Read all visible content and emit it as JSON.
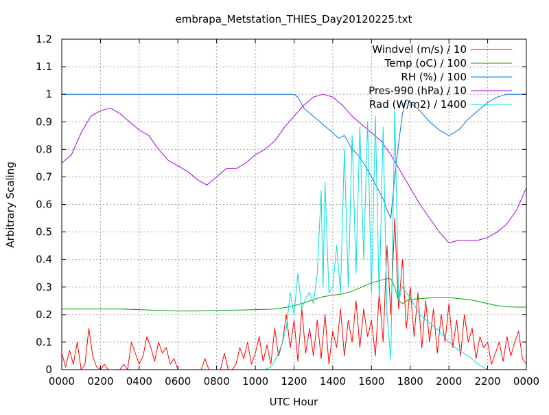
{
  "chart_data": {
    "type": "line",
    "title": "embrapa_Metstation_THIES_Day20120225.txt",
    "xlabel": "UTC Hour",
    "ylabel": "Arbitrary Scaling",
    "xlim": [
      0,
      24
    ],
    "ylim": [
      0,
      1.2
    ],
    "grid": true,
    "legend_position": "top-right",
    "x_tick_values": [
      0,
      2,
      4,
      6,
      8,
      10,
      12,
      14,
      16,
      18,
      20,
      22,
      24
    ],
    "x_tick_labels": [
      "0000",
      "0200",
      "0400",
      "0600",
      "0800",
      "1000",
      "1200",
      "1400",
      "1600",
      "1800",
      "2000",
      "2200",
      "0000"
    ],
    "y_tick_values": [
      0,
      0.1,
      0.2,
      0.3,
      0.4,
      0.5,
      0.6,
      0.7,
      0.8,
      0.9,
      1,
      1.1,
      1.2
    ],
    "y_tick_labels": [
      "0",
      "0.1",
      "0.2",
      "0.3",
      "0.4",
      "0.5",
      "0.6",
      "0.7",
      "0.8",
      "0.9",
      "1",
      "1.1",
      "1.2"
    ],
    "series": [
      {
        "name": "Windvel (m/s) / 10",
        "color": "#ff0000",
        "x": [
          0,
          0.2,
          0.4,
          0.6,
          0.8,
          1.0,
          1.2,
          1.4,
          1.6,
          1.8,
          2.0,
          2.2,
          2.4,
          2.6,
          2.8,
          3.0,
          3.2,
          3.4,
          3.6,
          3.8,
          4.0,
          4.2,
          4.4,
          4.6,
          4.8,
          5.0,
          5.2,
          5.4,
          5.6,
          5.8,
          6.0,
          6.2,
          6.4,
          6.6,
          6.8,
          7.0,
          7.2,
          7.4,
          7.6,
          7.8,
          8.0,
          8.2,
          8.4,
          8.6,
          8.8,
          9.0,
          9.2,
          9.4,
          9.6,
          9.8,
          10.0,
          10.2,
          10.4,
          10.6,
          10.8,
          11.0,
          11.2,
          11.4,
          11.6,
          11.8,
          12.0,
          12.2,
          12.4,
          12.6,
          12.8,
          13.0,
          13.2,
          13.4,
          13.6,
          13.8,
          14.0,
          14.2,
          14.4,
          14.6,
          14.8,
          15.0,
          15.2,
          15.4,
          15.6,
          15.8,
          16.0,
          16.2,
          16.4,
          16.6,
          16.8,
          17.0,
          17.2,
          17.4,
          17.6,
          17.8,
          18.0,
          18.2,
          18.4,
          18.6,
          18.8,
          19.0,
          19.2,
          19.4,
          19.6,
          19.8,
          20.0,
          20.2,
          20.4,
          20.6,
          20.8,
          21.0,
          21.2,
          21.4,
          21.6,
          21.8,
          22.0,
          22.2,
          22.4,
          22.6,
          22.8,
          23.0,
          23.2,
          23.4,
          23.6,
          23.8,
          24.0
        ],
        "y": [
          0.06,
          0.01,
          0.07,
          0.02,
          0.1,
          0.0,
          0.02,
          0.15,
          0.05,
          0.01,
          0.0,
          0.02,
          0.0,
          0.0,
          0.0,
          0.0,
          0.02,
          0.0,
          0.1,
          0.06,
          0.02,
          0.05,
          0.12,
          0.08,
          0.03,
          0.1,
          0.06,
          0.08,
          0.02,
          0.04,
          0.0,
          0.0,
          0.0,
          0.0,
          0.0,
          0.0,
          0.0,
          0.04,
          0.0,
          0.0,
          0.0,
          0.0,
          0.06,
          0.0,
          0.0,
          0.02,
          0.08,
          0.04,
          0.1,
          0.02,
          0.06,
          0.12,
          0.03,
          0.09,
          0.02,
          0.15,
          0.05,
          0.1,
          0.2,
          0.08,
          0.18,
          0.03,
          0.22,
          0.06,
          0.15,
          0.05,
          0.18,
          0.04,
          0.2,
          0.02,
          0.14,
          0.08,
          0.22,
          0.05,
          0.18,
          0.1,
          0.25,
          0.08,
          0.22,
          0.12,
          0.18,
          0.05,
          0.28,
          0.1,
          0.45,
          0.2,
          0.55,
          0.22,
          0.4,
          0.15,
          0.3,
          0.12,
          0.28,
          0.08,
          0.25,
          0.1,
          0.22,
          0.06,
          0.2,
          0.1,
          0.24,
          0.08,
          0.18,
          0.05,
          0.2,
          0.1,
          0.15,
          0.04,
          0.12,
          0.08,
          0.1,
          0.02,
          0.06,
          0.1,
          0.03,
          0.12,
          0.05,
          0.1,
          0.14,
          0.04,
          0.02
        ]
      },
      {
        "name": "Temp (oC) / 100",
        "color": "#00a000",
        "x": [
          0,
          1,
          2,
          3,
          4,
          5,
          6,
          7,
          8,
          9,
          10,
          11,
          11.5,
          12,
          12.5,
          13,
          13.5,
          14,
          14.5,
          15,
          15.5,
          16,
          16.5,
          16.8,
          17,
          17.2,
          17.4,
          17.6,
          17.8,
          18,
          18.5,
          19,
          19.5,
          20,
          20.5,
          21,
          21.5,
          22,
          22.5,
          23,
          23.5,
          24
        ],
        "y": [
          0.22,
          0.22,
          0.22,
          0.22,
          0.218,
          0.215,
          0.213,
          0.213,
          0.215,
          0.216,
          0.218,
          0.22,
          0.225,
          0.232,
          0.242,
          0.255,
          0.265,
          0.27,
          0.275,
          0.285,
          0.3,
          0.315,
          0.325,
          0.33,
          0.33,
          0.3,
          0.25,
          0.24,
          0.25,
          0.255,
          0.258,
          0.26,
          0.262,
          0.262,
          0.258,
          0.255,
          0.248,
          0.24,
          0.232,
          0.228,
          0.227,
          0.227
        ]
      },
      {
        "name": "RH (%) / 100",
        "color": "#0070e0",
        "x": [
          0,
          2,
          4,
          6,
          8,
          10,
          12,
          12.2,
          12.5,
          13,
          13.5,
          14,
          14.3,
          14.6,
          15,
          15.3,
          15.6,
          16,
          16.3,
          16.6,
          16.8,
          17,
          17.2,
          17.4,
          17.6,
          17.8,
          18,
          18.5,
          19,
          19.5,
          20,
          20.5,
          21,
          21.5,
          22,
          22.5,
          23,
          23.5,
          24
        ],
        "y": [
          1.0,
          1.0,
          1.0,
          1.0,
          1.0,
          1.0,
          1.0,
          0.99,
          0.95,
          0.92,
          0.89,
          0.86,
          0.84,
          0.85,
          0.8,
          0.78,
          0.75,
          0.7,
          0.66,
          0.62,
          0.58,
          0.55,
          0.7,
          0.82,
          0.93,
          0.98,
          0.97,
          0.94,
          0.9,
          0.87,
          0.85,
          0.87,
          0.91,
          0.94,
          0.97,
          0.99,
          1.0,
          1.0,
          1.0
        ]
      },
      {
        "name": "Pres-990 (hPa) / 10",
        "color": "#a000e0",
        "x": [
          0,
          0.5,
          1,
          1.5,
          2,
          2.5,
          3,
          3.5,
          4,
          4.5,
          5,
          5.5,
          6,
          6.5,
          7,
          7.5,
          8,
          8.5,
          9,
          9.5,
          10,
          10.5,
          11,
          11.5,
          12,
          12.5,
          13,
          13.5,
          14,
          14.5,
          15,
          15.5,
          16,
          16.5,
          17,
          17.5,
          18,
          18.5,
          19,
          19.5,
          20,
          20.5,
          21,
          21.5,
          22,
          22.5,
          23,
          23.5,
          24
        ],
        "y": [
          0.75,
          0.78,
          0.86,
          0.92,
          0.94,
          0.95,
          0.93,
          0.9,
          0.87,
          0.85,
          0.8,
          0.76,
          0.74,
          0.72,
          0.69,
          0.67,
          0.7,
          0.73,
          0.73,
          0.75,
          0.78,
          0.8,
          0.83,
          0.88,
          0.92,
          0.96,
          0.99,
          1.0,
          0.99,
          0.96,
          0.92,
          0.89,
          0.86,
          0.83,
          0.78,
          0.72,
          0.66,
          0.6,
          0.55,
          0.5,
          0.46,
          0.47,
          0.47,
          0.47,
          0.48,
          0.5,
          0.53,
          0.58,
          0.66
        ]
      },
      {
        "name": "Rad (W/m2) / 1400",
        "color": "#00dcdc",
        "x": [
          0,
          10.5,
          10.8,
          11.0,
          11.2,
          11.4,
          11.6,
          11.8,
          12.0,
          12.2,
          12.4,
          12.6,
          12.8,
          13.0,
          13.2,
          13.4,
          13.5,
          13.6,
          13.8,
          14.0,
          14.2,
          14.4,
          14.6,
          14.8,
          15.0,
          15.2,
          15.4,
          15.6,
          15.8,
          16.0,
          16.2,
          16.4,
          16.6,
          16.8,
          17.0,
          17.2,
          17.4,
          17.6,
          17.8,
          18.0,
          18.5,
          19.0,
          19.5,
          20.0,
          20.5,
          21.0,
          21.5,
          22.0,
          22.2,
          24
        ],
        "y": [
          0,
          0,
          0.01,
          0.03,
          0.06,
          0.1,
          0.15,
          0.28,
          0.2,
          0.35,
          0.22,
          0.26,
          0.28,
          0.24,
          0.35,
          0.65,
          0.3,
          0.68,
          0.28,
          0.3,
          0.45,
          0.28,
          0.8,
          0.3,
          0.85,
          0.35,
          0.88,
          0.4,
          0.9,
          0.28,
          0.92,
          0.25,
          0.88,
          0.2,
          0.04,
          0.95,
          0.25,
          0.3,
          0.28,
          0.26,
          0.2,
          0.17,
          0.14,
          0.1,
          0.07,
          0.05,
          0.02,
          0.0,
          0.0,
          0
        ]
      }
    ]
  }
}
